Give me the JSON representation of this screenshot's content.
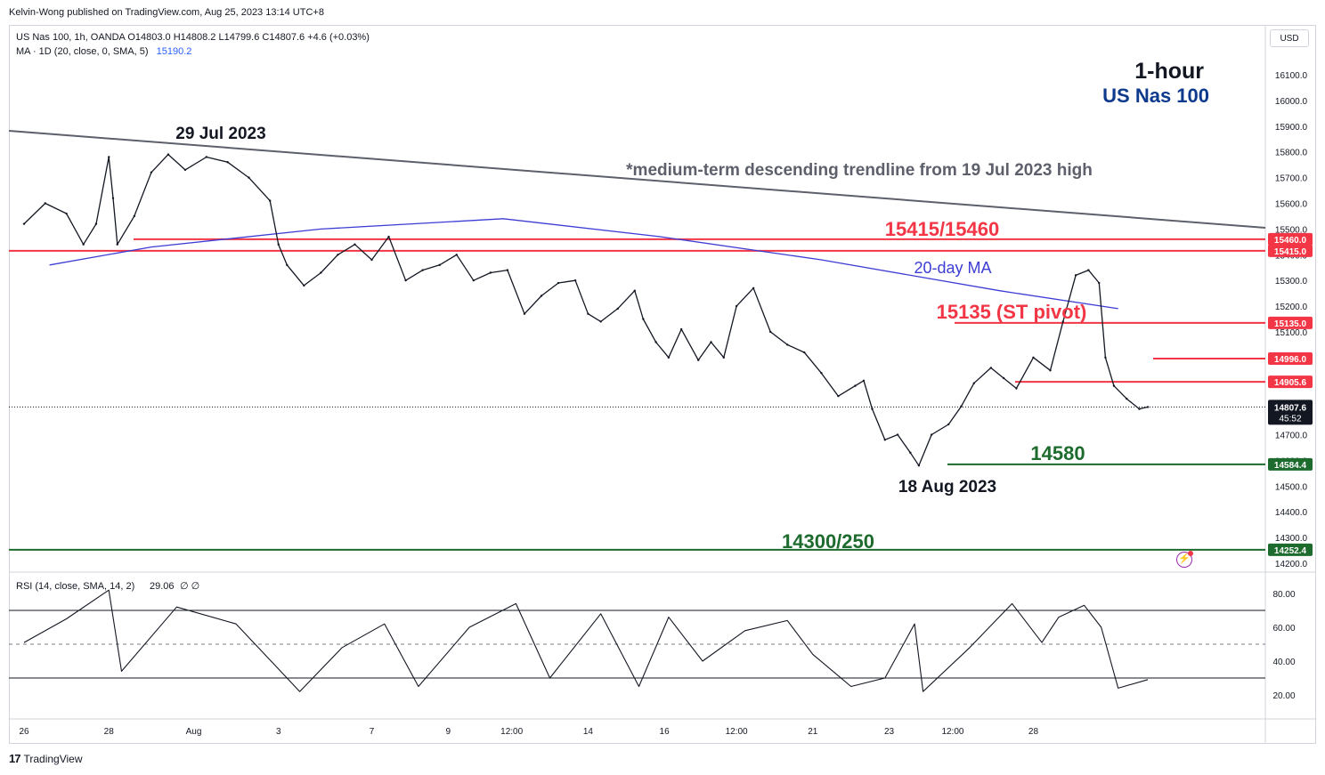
{
  "header": {
    "publisher": "Kelvin-Wong published on TradingView.com, Aug 25, 2023 13:14 UTC+8",
    "symbol_line": "US Nas 100, 1h, OANDA  O14803.0  H14808.2  L14799.6  C14807.6  +4.6 (+0.03%)",
    "ma_line_label": "MA · 1D (20, close, 0, SMA, 5)",
    "ma_value": "15190.2",
    "currency_button": "USD",
    "title_timeframe": "1-hour",
    "title_symbol": "US Nas 100"
  },
  "colors": {
    "resistance": "#f23645",
    "support": "#1e6b2e",
    "ma": "#3d3dd6",
    "trendline": "#5d606b",
    "title_symbol": "#0d3a8c",
    "price_line": "#131722"
  },
  "annotations": {
    "top_high": "29 Jul 2023",
    "trendline_note": "*medium-term descending trendline from 19 Jul 2023 high",
    "resistance_zone": "15415/15460",
    "ma_label": "20-day MA",
    "pivot": "15135 (ST pivot)",
    "support1": "14580",
    "low_date": "18 Aug 2023",
    "support2": "14300/250"
  },
  "price_axis": {
    "ticks": [
      "16100.0",
      "16000.0",
      "15900.0",
      "15800.0",
      "15700.0",
      "15600.0",
      "15500.0",
      "15400.0",
      "15300.0",
      "15200.0",
      "15100.0",
      "15000.0",
      "14900.0",
      "14800.0",
      "14700.0",
      "14600.0",
      "14500.0",
      "14400.0",
      "14300.0",
      "14200.0"
    ],
    "current_price": "14807.6",
    "countdown": "45:52",
    "level_tags": [
      {
        "value": 15460.0,
        "label": "15460.0",
        "color": "#f23645"
      },
      {
        "value": 15415.0,
        "label": "15415.0",
        "color": "#f23645"
      },
      {
        "value": 15135.0,
        "label": "15135.0",
        "color": "#f23645"
      },
      {
        "value": 14996.0,
        "label": "14996.0",
        "color": "#f23645"
      },
      {
        "value": 14905.6,
        "label": "14905.6",
        "color": "#f23645"
      },
      {
        "value": 14584.4,
        "label": "14584.4",
        "color": "#1e6b2e"
      },
      {
        "value": 14252.4,
        "label": "14252.4",
        "color": "#1e6b2e"
      }
    ]
  },
  "time_axis": {
    "ticks": [
      "26",
      "28",
      "Aug",
      "3",
      "7",
      "9",
      "12:00",
      "14",
      "16",
      "12:00",
      "21",
      "23",
      "12:00",
      "28"
    ]
  },
  "rsi": {
    "label": "RSI (14, close, SMA, 14, 2)",
    "value": "29.06",
    "extra": "∅  ∅",
    "ticks": [
      "80.00",
      "60.00",
      "40.00",
      "20.00"
    ],
    "upper_band": 70,
    "lower_band": 30,
    "mid": 50
  },
  "chart_data": [
    {
      "type": "line",
      "title": "",
      "x_start": "2023-07-26",
      "x_end": "2023-08-25",
      "ylim": [
        14200,
        16150
      ],
      "series": [
        {
          "values": [
            [
              26.0,
              15520
            ],
            [
              26.5,
              15600
            ],
            [
              27.0,
              15560
            ],
            [
              27.4,
              15440
            ],
            [
              27.7,
              15520
            ],
            [
              28.0,
              15780
            ],
            [
              28.1,
              15620
            ],
            [
              28.2,
              15440
            ],
            [
              28.6,
              15550
            ],
            [
              29.0,
              15720
            ],
            [
              29.4,
              15790
            ],
            [
              29.8,
              15730
            ],
            [
              30.3,
              15780
            ],
            [
              30.8,
              15760
            ],
            [
              31.3,
              15700
            ],
            [
              31.8,
              15610
            ],
            [
              32.0,
              15440
            ],
            [
              32.2,
              15360
            ],
            [
              32.6,
              15280
            ],
            [
              33.0,
              15330
            ],
            [
              33.4,
              15400
            ],
            [
              33.8,
              15440
            ],
            [
              34.2,
              15380
            ],
            [
              34.6,
              15470
            ],
            [
              35.0,
              15300
            ],
            [
              35.4,
              15340
            ],
            [
              35.8,
              15360
            ],
            [
              36.2,
              15400
            ],
            [
              36.6,
              15300
            ],
            [
              37.0,
              15330
            ],
            [
              37.4,
              15340
            ],
            [
              37.8,
              15170
            ],
            [
              38.2,
              15240
            ],
            [
              38.6,
              15290
            ],
            [
              39.0,
              15300
            ],
            [
              39.3,
              15170
            ],
            [
              39.6,
              15140
            ],
            [
              40.0,
              15190
            ],
            [
              40.4,
              15260
            ],
            [
              40.6,
              15150
            ],
            [
              40.9,
              15060
            ],
            [
              41.2,
              15000
            ],
            [
              41.5,
              15110
            ],
            [
              41.9,
              14990
            ],
            [
              42.2,
              15060
            ],
            [
              42.5,
              15000
            ],
            [
              42.8,
              15200
            ],
            [
              43.2,
              15270
            ],
            [
              43.6,
              15100
            ],
            [
              44.0,
              15050
            ],
            [
              44.4,
              15020
            ],
            [
              44.8,
              14940
            ],
            [
              45.2,
              14850
            ],
            [
              45.6,
              14890
            ],
            [
              45.8,
              14910
            ],
            [
              46.0,
              14800
            ],
            [
              46.3,
              14680
            ],
            [
              46.6,
              14700
            ],
            [
              46.9,
              14630
            ],
            [
              47.1,
              14580
            ],
            [
              47.4,
              14700
            ],
            [
              47.8,
              14740
            ],
            [
              48.1,
              14810
            ],
            [
              48.4,
              14900
            ],
            [
              48.8,
              14960
            ],
            [
              49.1,
              14920
            ],
            [
              49.4,
              14880
            ],
            [
              49.8,
              15000
            ],
            [
              50.2,
              14950
            ],
            [
              50.5,
              15140
            ],
            [
              50.8,
              15320
            ],
            [
              51.1,
              15340
            ],
            [
              51.35,
              15290
            ],
            [
              51.5,
              15000
            ],
            [
              51.7,
              14890
            ],
            [
              52.0,
              14840
            ],
            [
              52.3,
              14800
            ],
            [
              52.5,
              14807.6
            ]
          ]
        }
      ]
    },
    {
      "type": "line",
      "series": [
        {
          "name": "20-day MA",
          "values": [
            [
              26.6,
              15360
            ],
            [
              29.0,
              15430
            ],
            [
              33.0,
              15500
            ],
            [
              37.3,
              15540
            ],
            [
              41.0,
              15470
            ],
            [
              44.8,
              15380
            ],
            [
              49.0,
              15260
            ],
            [
              51.8,
              15190
            ]
          ]
        }
      ]
    },
    {
      "type": "line",
      "series": [
        {
          "values": [
            [
              26.0,
              51
            ],
            [
              27.0,
              65
            ],
            [
              28.0,
              82
            ],
            [
              28.3,
              34
            ],
            [
              29.6,
              72
            ],
            [
              31.0,
              62
            ],
            [
              32.5,
              22
            ],
            [
              33.5,
              48
            ],
            [
              34.5,
              62
            ],
            [
              35.3,
              25
            ],
            [
              36.5,
              60
            ],
            [
              37.6,
              74
            ],
            [
              38.4,
              30
            ],
            [
              39.6,
              68
            ],
            [
              40.5,
              25
            ],
            [
              41.2,
              66
            ],
            [
              42.0,
              40
            ],
            [
              43.0,
              58
            ],
            [
              44.0,
              64
            ],
            [
              44.6,
              44
            ],
            [
              45.5,
              25
            ],
            [
              46.3,
              30
            ],
            [
              47.0,
              62
            ],
            [
              47.2,
              22
            ],
            [
              48.3,
              48
            ],
            [
              49.3,
              74
            ],
            [
              50.0,
              51
            ],
            [
              50.4,
              66
            ],
            [
              51.0,
              73
            ],
            [
              51.4,
              60
            ],
            [
              51.8,
              24
            ],
            [
              52.5,
              29.06
            ]
          ]
        }
      ]
    }
  ]
}
